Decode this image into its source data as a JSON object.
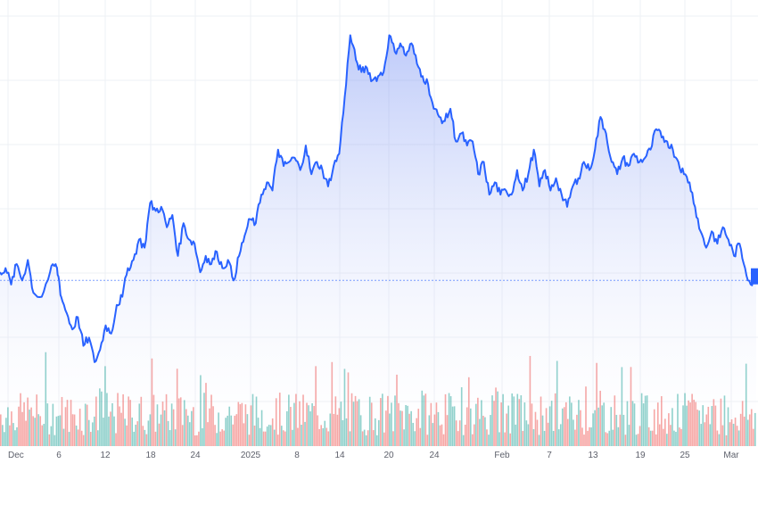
{
  "chart_data": {
    "type": "area",
    "title": "",
    "xlabel": "",
    "ylabel": "",
    "grid": true,
    "legend": "none",
    "x_tick_labels": [
      "Dec",
      "6",
      "12",
      "18",
      "24",
      "2025",
      "8",
      "14",
      "20",
      "24",
      "Feb",
      "7",
      "13",
      "19",
      "25",
      "Mar"
    ],
    "ylim": [
      0,
      100
    ],
    "reference_level": 34,
    "price_series": [
      {
        "t": 0.0,
        "v": 36
      },
      {
        "t": 1.0,
        "v": 37
      },
      {
        "t": 2.0,
        "v": 33
      },
      {
        "t": 3.0,
        "v": 38
      },
      {
        "t": 4.0,
        "v": 34
      },
      {
        "t": 5.0,
        "v": 39
      },
      {
        "t": 6.0,
        "v": 31
      },
      {
        "t": 7.5,
        "v": 30
      },
      {
        "t": 9.0,
        "v": 36
      },
      {
        "t": 10.0,
        "v": 38
      },
      {
        "t": 10.5,
        "v": 35
      },
      {
        "t": 11.0,
        "v": 30
      },
      {
        "t": 12.0,
        "v": 26
      },
      {
        "t": 13.0,
        "v": 22
      },
      {
        "t": 14.0,
        "v": 25
      },
      {
        "t": 15.0,
        "v": 18
      },
      {
        "t": 16.0,
        "v": 20
      },
      {
        "t": 17.0,
        "v": 14
      },
      {
        "t": 18.0,
        "v": 17
      },
      {
        "t": 19.0,
        "v": 23
      },
      {
        "t": 20.0,
        "v": 21
      },
      {
        "t": 21.0,
        "v": 28
      },
      {
        "t": 22.0,
        "v": 30
      },
      {
        "t": 23.0,
        "v": 37
      },
      {
        "t": 24.0,
        "v": 39
      },
      {
        "t": 25.0,
        "v": 44
      },
      {
        "t": 26.0,
        "v": 42
      },
      {
        "t": 27.0,
        "v": 53
      },
      {
        "t": 28.0,
        "v": 51
      },
      {
        "t": 29.0,
        "v": 52
      },
      {
        "t": 30.0,
        "v": 47
      },
      {
        "t": 31.0,
        "v": 50
      },
      {
        "t": 32.0,
        "v": 40
      },
      {
        "t": 33.0,
        "v": 48
      },
      {
        "t": 34.0,
        "v": 44
      },
      {
        "t": 35.0,
        "v": 43
      },
      {
        "t": 36.0,
        "v": 36
      },
      {
        "t": 37.0,
        "v": 40
      },
      {
        "t": 38.0,
        "v": 38
      },
      {
        "t": 39.0,
        "v": 41
      },
      {
        "t": 40.0,
        "v": 37
      },
      {
        "t": 41.0,
        "v": 39
      },
      {
        "t": 42.0,
        "v": 34
      },
      {
        "t": 43.0,
        "v": 40
      },
      {
        "t": 44.0,
        "v": 45
      },
      {
        "t": 45.0,
        "v": 49
      },
      {
        "t": 46.0,
        "v": 48
      },
      {
        "t": 47.0,
        "v": 55
      },
      {
        "t": 48.0,
        "v": 58
      },
      {
        "t": 49.0,
        "v": 56
      },
      {
        "t": 50.0,
        "v": 66
      },
      {
        "t": 51.0,
        "v": 62
      },
      {
        "t": 52.0,
        "v": 63
      },
      {
        "t": 53.0,
        "v": 64
      },
      {
        "t": 54.0,
        "v": 61
      },
      {
        "t": 55.0,
        "v": 67
      },
      {
        "t": 56.0,
        "v": 60
      },
      {
        "t": 57.0,
        "v": 63
      },
      {
        "t": 58.0,
        "v": 61
      },
      {
        "t": 59.0,
        "v": 57
      },
      {
        "t": 60.0,
        "v": 62
      },
      {
        "t": 61.0,
        "v": 65
      },
      {
        "t": 62.0,
        "v": 79
      },
      {
        "t": 63.0,
        "v": 94
      },
      {
        "t": 64.0,
        "v": 88
      },
      {
        "t": 65.0,
        "v": 85
      },
      {
        "t": 66.0,
        "v": 86
      },
      {
        "t": 67.0,
        "v": 83
      },
      {
        "t": 68.0,
        "v": 84
      },
      {
        "t": 69.0,
        "v": 85
      },
      {
        "t": 70.0,
        "v": 94
      },
      {
        "t": 71.0,
        "v": 90
      },
      {
        "t": 72.0,
        "v": 92
      },
      {
        "t": 73.0,
        "v": 89
      },
      {
        "t": 74.0,
        "v": 92
      },
      {
        "t": 75.0,
        "v": 87
      },
      {
        "t": 76.0,
        "v": 84
      },
      {
        "t": 77.0,
        "v": 82
      },
      {
        "t": 78.0,
        "v": 76
      },
      {
        "t": 79.0,
        "v": 74
      },
      {
        "t": 80.0,
        "v": 73
      },
      {
        "t": 81.0,
        "v": 76
      },
      {
        "t": 82.0,
        "v": 68
      },
      {
        "t": 83.0,
        "v": 70
      },
      {
        "t": 84.0,
        "v": 67
      },
      {
        "t": 85.0,
        "v": 68
      },
      {
        "t": 86.0,
        "v": 60
      },
      {
        "t": 87.0,
        "v": 63
      },
      {
        "t": 88.0,
        "v": 55
      },
      {
        "t": 89.0,
        "v": 58
      },
      {
        "t": 90.0,
        "v": 55
      },
      {
        "t": 91.0,
        "v": 56
      },
      {
        "t": 92.0,
        "v": 55
      },
      {
        "t": 93.0,
        "v": 61
      },
      {
        "t": 94.0,
        "v": 56
      },
      {
        "t": 95.0,
        "v": 60
      },
      {
        "t": 96.0,
        "v": 66
      },
      {
        "t": 97.0,
        "v": 57
      },
      {
        "t": 98.0,
        "v": 61
      },
      {
        "t": 99.0,
        "v": 56
      },
      {
        "t": 100.0,
        "v": 59
      },
      {
        "t": 101.0,
        "v": 55
      },
      {
        "t": 102.0,
        "v": 52
      },
      {
        "t": 103.0,
        "v": 57
      },
      {
        "t": 104.0,
        "v": 59
      },
      {
        "t": 105.0,
        "v": 63
      },
      {
        "t": 106.0,
        "v": 61
      },
      {
        "t": 107.0,
        "v": 66
      },
      {
        "t": 108.0,
        "v": 74
      },
      {
        "t": 109.0,
        "v": 70
      },
      {
        "t": 110.0,
        "v": 63
      },
      {
        "t": 111.0,
        "v": 60
      },
      {
        "t": 112.0,
        "v": 64
      },
      {
        "t": 113.0,
        "v": 62
      },
      {
        "t": 114.0,
        "v": 65
      },
      {
        "t": 115.0,
        "v": 63
      },
      {
        "t": 116.0,
        "v": 64
      },
      {
        "t": 117.0,
        "v": 66
      },
      {
        "t": 118.0,
        "v": 71
      },
      {
        "t": 119.0,
        "v": 69
      },
      {
        "t": 120.0,
        "v": 68
      },
      {
        "t": 121.0,
        "v": 66
      },
      {
        "t": 122.0,
        "v": 63
      },
      {
        "t": 123.0,
        "v": 60
      },
      {
        "t": 124.0,
        "v": 58
      },
      {
        "t": 125.0,
        "v": 52
      },
      {
        "t": 126.0,
        "v": 46
      },
      {
        "t": 127.0,
        "v": 42
      },
      {
        "t": 128.0,
        "v": 46
      },
      {
        "t": 129.0,
        "v": 43
      },
      {
        "t": 130.0,
        "v": 47
      },
      {
        "t": 131.0,
        "v": 44
      },
      {
        "t": 132.0,
        "v": 40
      },
      {
        "t": 133.0,
        "v": 43
      },
      {
        "t": 134.0,
        "v": 37
      },
      {
        "t": 135.0,
        "v": 33
      },
      {
        "t": 136.0,
        "v": 35
      }
    ],
    "volume_bar_count": 420,
    "volume_seed": 7,
    "colors": {
      "line": "#2962ff",
      "area_top": "#5d7cf0",
      "area_bottom": "#ffffff",
      "volume_up": "#26a69a",
      "volume_down": "#ef5350",
      "reference_line": "#2962ff",
      "grid": "#eef0f4",
      "tick_text": "#5d606b"
    }
  }
}
